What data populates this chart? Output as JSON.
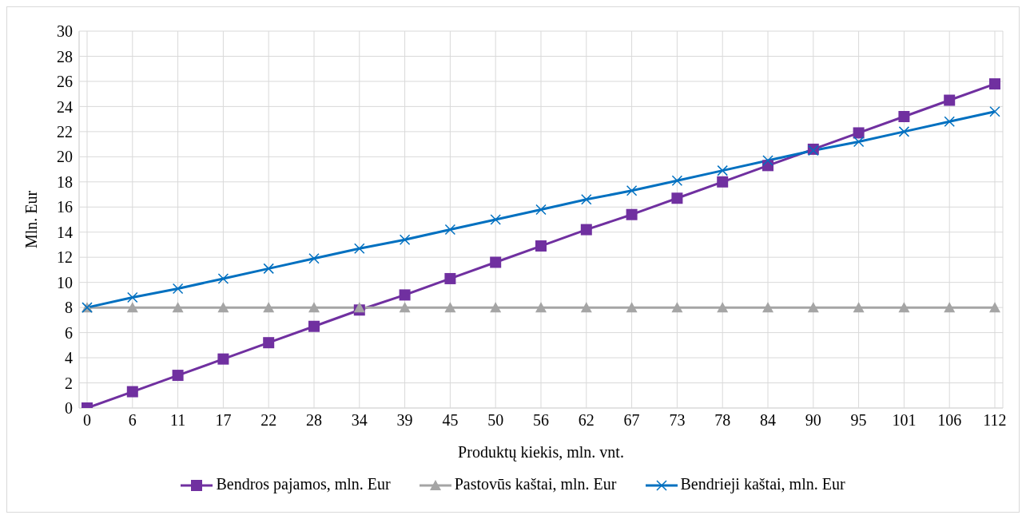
{
  "chart_data": {
    "type": "line",
    "xlabel": "Produktų kiekis, mln. vnt.",
    "ylabel": "Mln. Eur",
    "categories": [
      "0",
      "6",
      "11",
      "17",
      "22",
      "28",
      "34",
      "39",
      "45",
      "50",
      "56",
      "62",
      "67",
      "73",
      "78",
      "84",
      "90",
      "95",
      "101",
      "106",
      "112"
    ],
    "ylim": [
      0,
      30
    ],
    "yticks": [
      0,
      2,
      4,
      6,
      8,
      10,
      12,
      14,
      16,
      18,
      20,
      22,
      24,
      26,
      28,
      30
    ],
    "grid": true,
    "legend": "bottom",
    "series": [
      {
        "name": "Bendros pajamos, mln. Eur",
        "color": "#7030a0",
        "marker": "square",
        "values": [
          0,
          1.3,
          2.6,
          3.9,
          5.2,
          6.5,
          7.8,
          9.0,
          10.3,
          11.6,
          12.9,
          14.2,
          15.4,
          16.7,
          18.0,
          19.3,
          20.6,
          21.9,
          23.2,
          24.5,
          25.8
        ]
      },
      {
        "name": "Pastovūs kaštai, mln. Eur",
        "color": "#a5a5a5",
        "marker": "triangle",
        "values": [
          8,
          8,
          8,
          8,
          8,
          8,
          8,
          8,
          8,
          8,
          8,
          8,
          8,
          8,
          8,
          8,
          8,
          8,
          8,
          8,
          8
        ]
      },
      {
        "name": "Bendrieji kaštai, mln. Eur",
        "color": "#0070c0",
        "marker": "cross",
        "values": [
          8,
          8.8,
          9.5,
          10.3,
          11.1,
          11.9,
          12.7,
          13.4,
          14.2,
          15.0,
          15.8,
          16.6,
          17.3,
          18.1,
          18.9,
          19.7,
          20.5,
          21.2,
          22.0,
          22.8,
          23.6
        ]
      }
    ]
  }
}
